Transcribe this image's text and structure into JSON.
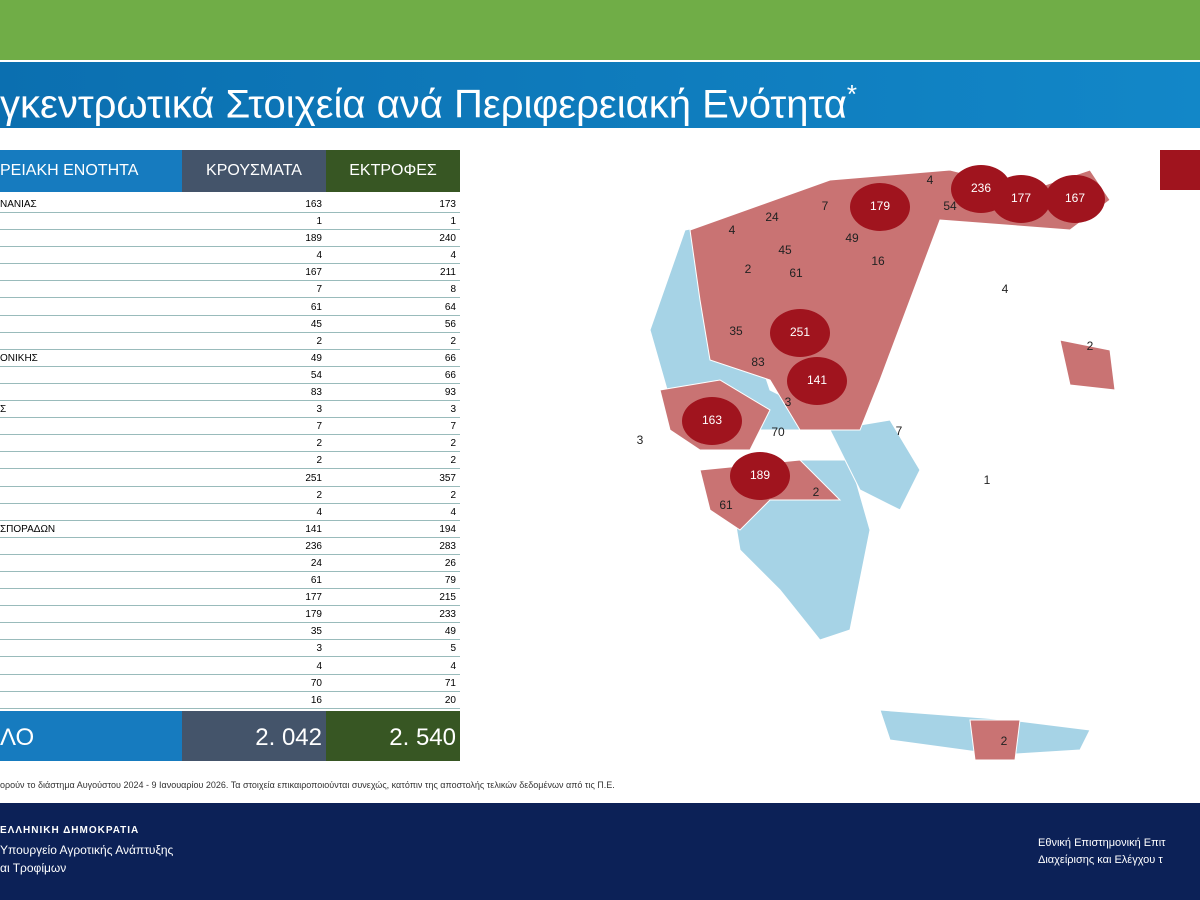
{
  "header": {
    "title": "γκεντρωτικά Στοιχεία ανά Περιφερειακή Ενότητα",
    "title_mark": "*"
  },
  "table": {
    "columns": [
      "ΡΕΙΑΚΗ ΕΝΟΤΗΤΑ",
      "ΚΡΟΥΣΜΑΤΑ",
      "ΕΚΤΡΟΦΕΣ"
    ],
    "rows": [
      [
        "ΝΑΝΙΑΣ",
        163,
        173
      ],
      [
        null,
        1,
        1
      ],
      [
        null,
        189,
        240
      ],
      [
        null,
        4,
        4
      ],
      [
        null,
        167,
        211
      ],
      [
        null,
        7,
        8
      ],
      [
        null,
        61,
        64
      ],
      [
        null,
        45,
        56
      ],
      [
        null,
        2,
        2
      ],
      [
        "ΟΝΙΚΗΣ",
        49,
        66
      ],
      [
        null,
        54,
        66
      ],
      [
        null,
        83,
        93
      ],
      [
        "Σ",
        3,
        3
      ],
      [
        null,
        7,
        7
      ],
      [
        null,
        2,
        2
      ],
      [
        null,
        2,
        2
      ],
      [
        null,
        251,
        357
      ],
      [
        null,
        2,
        2
      ],
      [
        null,
        4,
        4
      ],
      [
        "ΣΠΟΡΑΔΩΝ",
        141,
        194
      ],
      [
        null,
        236,
        283
      ],
      [
        null,
        24,
        26
      ],
      [
        null,
        61,
        79
      ],
      [
        null,
        177,
        215
      ],
      [
        null,
        179,
        233
      ],
      [
        null,
        35,
        49
      ],
      [
        null,
        3,
        5
      ],
      [
        null,
        4,
        4
      ],
      [
        null,
        70,
        71
      ],
      [
        null,
        16,
        20
      ]
    ],
    "total": [
      "ΛΟ",
      "2. 042",
      "2. 540"
    ]
  },
  "map": {
    "labels": [
      179,
      4,
      236,
      177,
      167,
      54,
      7,
      24,
      4,
      45,
      49,
      2,
      61,
      16,
      4,
      251,
      35,
      83,
      141,
      2,
      3,
      163,
      70,
      7,
      3,
      189,
      1,
      2,
      61,
      2
    ]
  },
  "footnote": "ορούν το διάστημα Αυγούστου 2024 - 9 Ιανουαρίου 2026. Τα στοιχεία επικαιροποιούνται συνεχώς, κατόπιν της αποστολής τελικών δεδομένων από τις Π.Ε.",
  "footer": {
    "left": [
      "ΕΛΛΗΝΙΚΗ ΔΗΜΟΚΡΑΤΙΑ",
      "Υπουργείο Αγροτικής Ανάπτυξης",
      "αι Τροφίμων"
    ],
    "right": [
      "Εθνική Επιστημονική Επιτ",
      "Διαχείρισης και Ελέγχου τ"
    ]
  }
}
